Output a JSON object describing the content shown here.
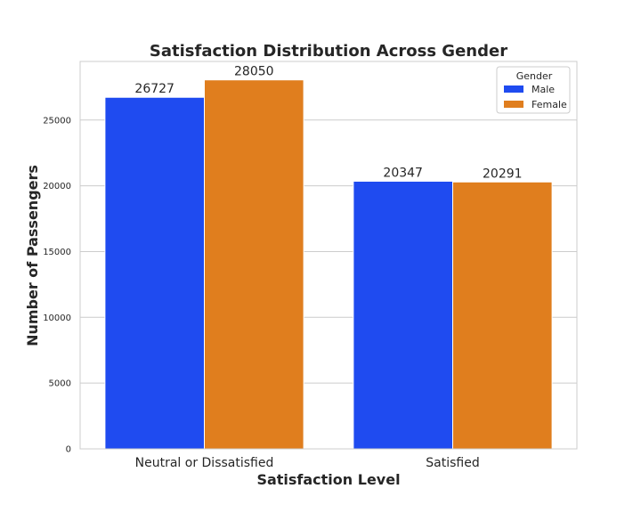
{
  "chart_data": {
    "type": "bar",
    "title": "Satisfaction Distribution Across Gender",
    "xlabel": "Satisfaction Level",
    "ylabel": "Number of Passengers",
    "categories": [
      "Neutral or Dissatisfied",
      "Satisfied"
    ],
    "series": [
      {
        "name": "Male",
        "values": [
          26727,
          20347
        ],
        "color": "#1f4bf0"
      },
      {
        "name": "Female",
        "values": [
          28050,
          20291
        ],
        "color": "#e07e1e"
      }
    ],
    "data_labels": [
      [
        "26727",
        "20347"
      ],
      [
        "28050",
        "20291"
      ]
    ],
    "yticks": [
      0,
      5000,
      10000,
      15000,
      20000,
      25000
    ],
    "ytick_labels": [
      "0",
      "5000",
      "10000",
      "15000",
      "20000",
      "25000"
    ],
    "ylim": [
      0,
      29452
    ],
    "grid": "horizontal",
    "legend": {
      "title": "Gender",
      "placement": "top-right"
    }
  }
}
